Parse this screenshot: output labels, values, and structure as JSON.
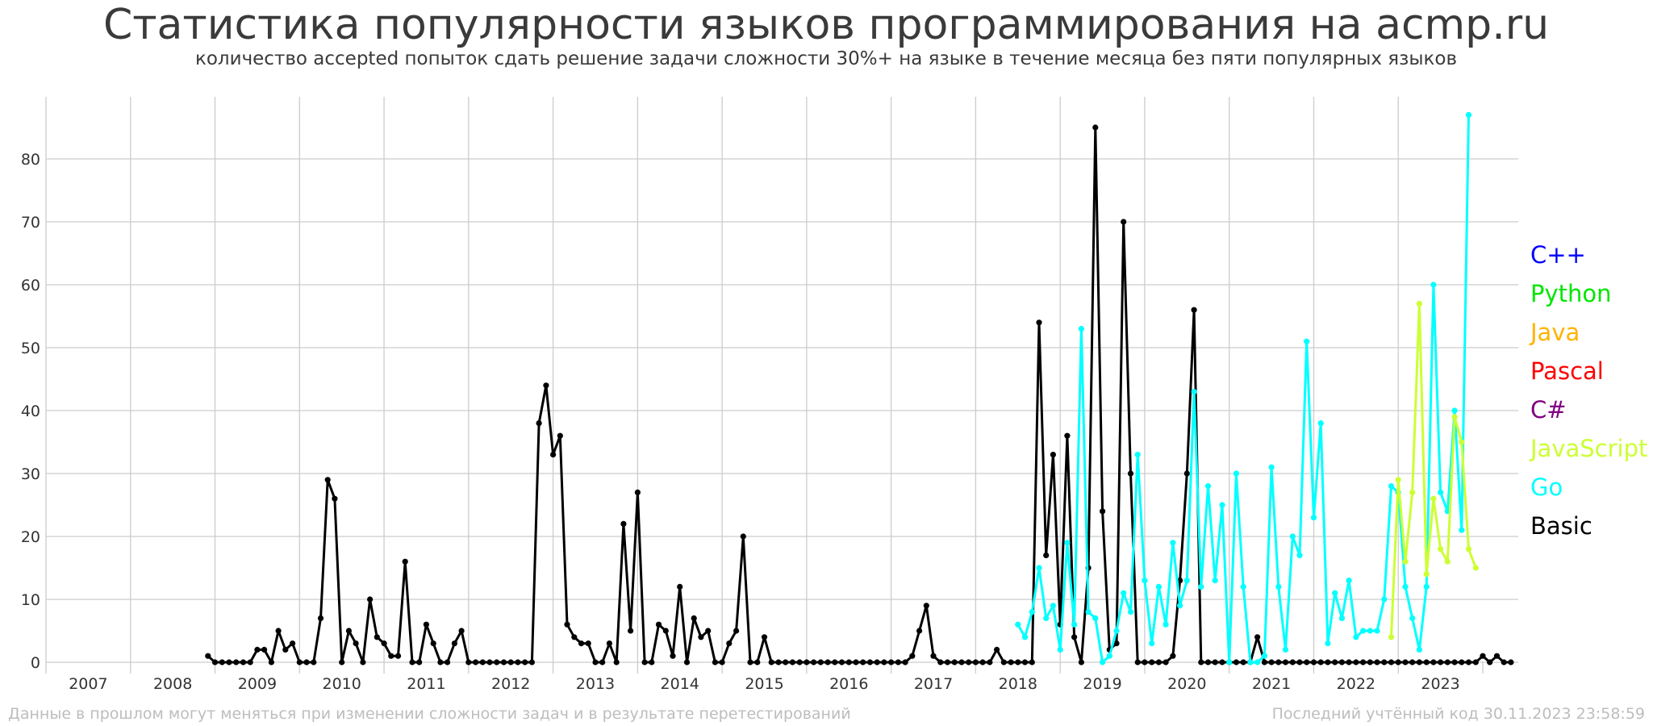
{
  "chart_data": {
    "type": "line",
    "title": "Статистика популярности языков программирования на acmp.ru",
    "subtitle": "количество accepted попыток сдать решение задачи сложности 30%+ на языке в течение месяца без пяти популярных языков",
    "ylim": [
      0,
      90
    ],
    "yticks": [
      0,
      10,
      20,
      30,
      40,
      50,
      60,
      70,
      80
    ],
    "xlim": [
      2006.5,
      2023.92
    ],
    "years": [
      "2007",
      "2008",
      "2009",
      "2010",
      "2011",
      "2012",
      "2013",
      "2014",
      "2015",
      "2016",
      "2017",
      "2018",
      "2019",
      "2020",
      "2021",
      "2022",
      "2023"
    ],
    "grid": true,
    "legend_position": "right",
    "legend": [
      {
        "name": "C++",
        "color": "#0000ff"
      },
      {
        "name": "Python",
        "color": "#00e600"
      },
      {
        "name": "Java",
        "color": "#ffb300"
      },
      {
        "name": "Pascal",
        "color": "#ff0000"
      },
      {
        "name": "C#",
        "color": "#800080"
      },
      {
        "name": "JavaScript",
        "color": "#ccff33"
      },
      {
        "name": "Go",
        "color": "#00ffff"
      },
      {
        "name": "Basic",
        "color": "#000000"
      }
    ],
    "series": [
      {
        "name": "Basic",
        "color": "#000000",
        "start": "2008-06",
        "values": [
          1,
          0,
          0,
          0,
          0,
          0,
          0,
          2,
          2,
          0,
          5,
          2,
          3,
          0,
          0,
          0,
          7,
          29,
          26,
          0,
          5,
          3,
          0,
          10,
          4,
          3,
          1,
          1,
          16,
          0,
          0,
          6,
          3,
          0,
          0,
          3,
          5,
          0,
          0,
          0,
          0,
          0,
          0,
          0,
          0,
          0,
          0,
          38,
          44,
          33,
          36,
          6,
          4,
          3,
          3,
          0,
          0,
          3,
          0,
          22,
          5,
          27,
          0,
          0,
          6,
          5,
          1,
          12,
          0,
          7,
          4,
          5,
          0,
          0,
          3,
          5,
          20,
          0,
          0,
          4,
          0,
          0,
          0,
          0,
          0,
          0,
          0,
          0,
          0,
          0,
          0,
          0,
          0,
          0,
          0,
          0,
          0,
          0,
          0,
          0,
          1,
          5,
          9,
          1,
          0,
          0,
          0,
          0,
          0,
          0,
          0,
          0,
          2,
          0,
          0,
          0,
          0,
          0,
          54,
          17,
          33,
          6,
          36,
          4,
          0,
          15,
          85,
          24,
          2,
          3,
          70,
          30,
          0,
          0,
          0,
          0,
          0,
          1,
          13,
          30,
          56,
          0,
          0,
          0,
          0,
          0,
          0,
          0,
          0,
          4,
          0,
          0,
          0,
          0,
          0,
          0,
          0,
          0,
          0,
          0,
          0,
          0,
          0,
          0,
          0,
          0,
          0,
          0,
          0,
          0,
          0,
          0,
          0,
          0,
          0,
          0,
          0,
          0,
          0,
          0,
          0,
          1,
          0,
          1,
          0,
          0
        ]
      },
      {
        "name": "Go",
        "color": "#00ffff",
        "start": "2018-01",
        "values": [
          6,
          4,
          8,
          15,
          7,
          9,
          2,
          19,
          6,
          53,
          8,
          7,
          0,
          1,
          5,
          11,
          8,
          33,
          13,
          3,
          12,
          6,
          19,
          9,
          13,
          43,
          12,
          28,
          13,
          25,
          0,
          30,
          12,
          0,
          0,
          1,
          31,
          12,
          2,
          20,
          17,
          51,
          23,
          38,
          3,
          11,
          7,
          13,
          4,
          5,
          5,
          5,
          10,
          28,
          27,
          12,
          7,
          2,
          12,
          60,
          27,
          24,
          40,
          21,
          87
        ]
      },
      {
        "name": "JavaScript",
        "color": "#ccff33",
        "start": "2022-06",
        "values": [
          4,
          29,
          16,
          27,
          57,
          14,
          26,
          18,
          16,
          39,
          35,
          18,
          15
        ]
      }
    ]
  },
  "footer": {
    "left": "Данные в прошлом могут меняться при изменении сложности задач и в результате перетестирований",
    "right": "Последний учтённый код 30.11.2023 23:58:59"
  }
}
